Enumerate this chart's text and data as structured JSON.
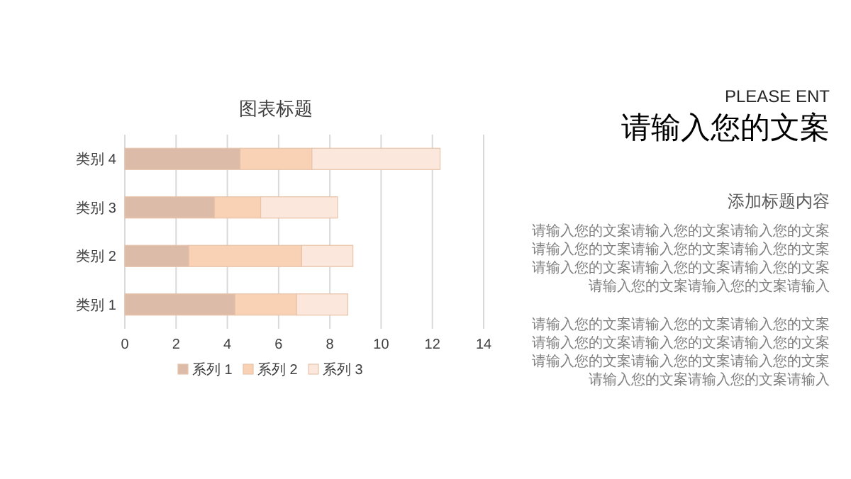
{
  "chart_data": {
    "type": "bar",
    "orientation": "horizontal",
    "stacked": true,
    "title": "图表标题",
    "categories": [
      "类别 4",
      "类别 3",
      "类别 2",
      "类别 1"
    ],
    "series": [
      {
        "name": "系列 1",
        "color": "#dcbba8",
        "values": [
          4.5,
          3.5,
          2.5,
          4.3
        ]
      },
      {
        "name": "系列 2",
        "color": "#f9d2b6",
        "values": [
          2.8,
          1.8,
          4.4,
          2.4
        ]
      },
      {
        "name": "系列 3",
        "color": "#fbe7dc",
        "values": [
          5,
          3,
          2,
          2
        ]
      }
    ],
    "xlim": [
      0,
      14
    ],
    "xticks": [
      0,
      2,
      4,
      6,
      8,
      10,
      12,
      14
    ],
    "grid": "x",
    "legend": "bottom",
    "annotations": [
      "PLEASE ENT",
      "请输入您的文案",
      "添加标题内容",
      "请输入您的文案请输入您的文案请输入您的文案请输入您的文案请输入您的文案请输入您的文案请输入您的文案请输入您的文案请输入您的文案请输入您的文案请输入您的文案请输入",
      "请输入您的文案请输入您的文案请输入您的文案请输入您的文案请输入您的文案请输入您的文案请输入您的文案请输入您的文案请输入您的文案请输入您的文案请输入您的文案请输入"
    ]
  }
}
